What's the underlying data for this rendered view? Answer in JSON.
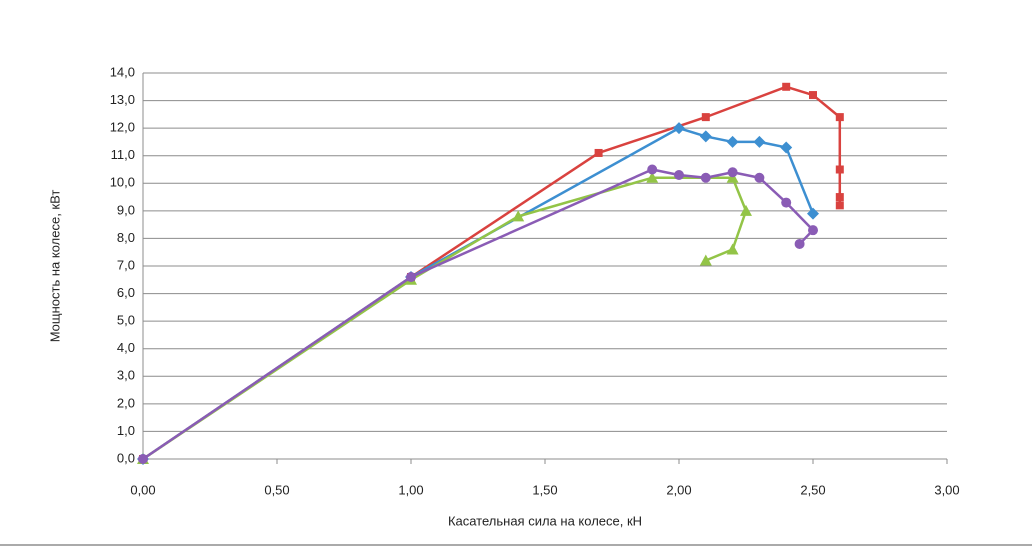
{
  "chart_data": {
    "type": "line",
    "xlabel": "Касательная сила на колесе, кН",
    "ylabel": "Мощность на колесе, кВт",
    "xlim": [
      0,
      3
    ],
    "ylim": [
      0,
      14
    ],
    "xticks": [
      {
        "value": 0,
        "label": "0,00"
      },
      {
        "value": 0.5,
        "label": "0,50"
      },
      {
        "value": 1,
        "label": "1,00"
      },
      {
        "value": 1.5,
        "label": "1,50"
      },
      {
        "value": 2,
        "label": "2,00"
      },
      {
        "value": 2.5,
        "label": "2,50"
      },
      {
        "value": 3,
        "label": "3,00"
      }
    ],
    "yticks": [
      {
        "value": 0,
        "label": "0,0"
      },
      {
        "value": 1,
        "label": "1,0"
      },
      {
        "value": 2,
        "label": "2,0"
      },
      {
        "value": 3,
        "label": "3,0"
      },
      {
        "value": 4,
        "label": "4,0"
      },
      {
        "value": 5,
        "label": "5,0"
      },
      {
        "value": 6,
        "label": "6,0"
      },
      {
        "value": 7,
        "label": "7,0"
      },
      {
        "value": 8,
        "label": "8,0"
      },
      {
        "value": 9,
        "label": "9,0"
      },
      {
        "value": 10,
        "label": "10,0"
      },
      {
        "value": 11,
        "label": "11,0"
      },
      {
        "value": 12,
        "label": "12,0"
      },
      {
        "value": 13,
        "label": "13,0"
      },
      {
        "value": 14,
        "label": "14,0"
      }
    ],
    "grid": true,
    "series": [
      {
        "color": "#d9423f",
        "marker": "square",
        "x": [
          0,
          1.0,
          1.7,
          2.1,
          2.4,
          2.5,
          2.6,
          2.6,
          2.6,
          2.6
        ],
        "values": [
          0,
          6.6,
          11.1,
          12.4,
          13.5,
          13.2,
          12.4,
          10.5,
          9.5,
          9.2
        ]
      },
      {
        "color": "#3d8fd1",
        "marker": "diamond",
        "x": [
          0,
          1.0,
          2.0,
          2.1,
          2.2,
          2.3,
          2.4,
          2.5
        ],
        "values": [
          0,
          6.6,
          12.0,
          11.7,
          11.5,
          11.5,
          11.3,
          8.9
        ]
      },
      {
        "color": "#93c447",
        "marker": "triangle",
        "x": [
          0,
          1.0,
          1.4,
          1.9,
          2.2,
          2.25,
          2.2,
          2.1
        ],
        "values": [
          0,
          6.5,
          8.8,
          10.2,
          10.2,
          9.0,
          7.6,
          7.2
        ]
      },
      {
        "color": "#8a5cb5",
        "marker": "circle",
        "x": [
          0,
          1.0,
          1.9,
          2.0,
          2.1,
          2.2,
          2.3,
          2.4,
          2.5,
          2.45
        ],
        "values": [
          0,
          6.6,
          10.5,
          10.3,
          10.2,
          10.4,
          10.2,
          9.3,
          8.3,
          7.8
        ]
      }
    ]
  }
}
